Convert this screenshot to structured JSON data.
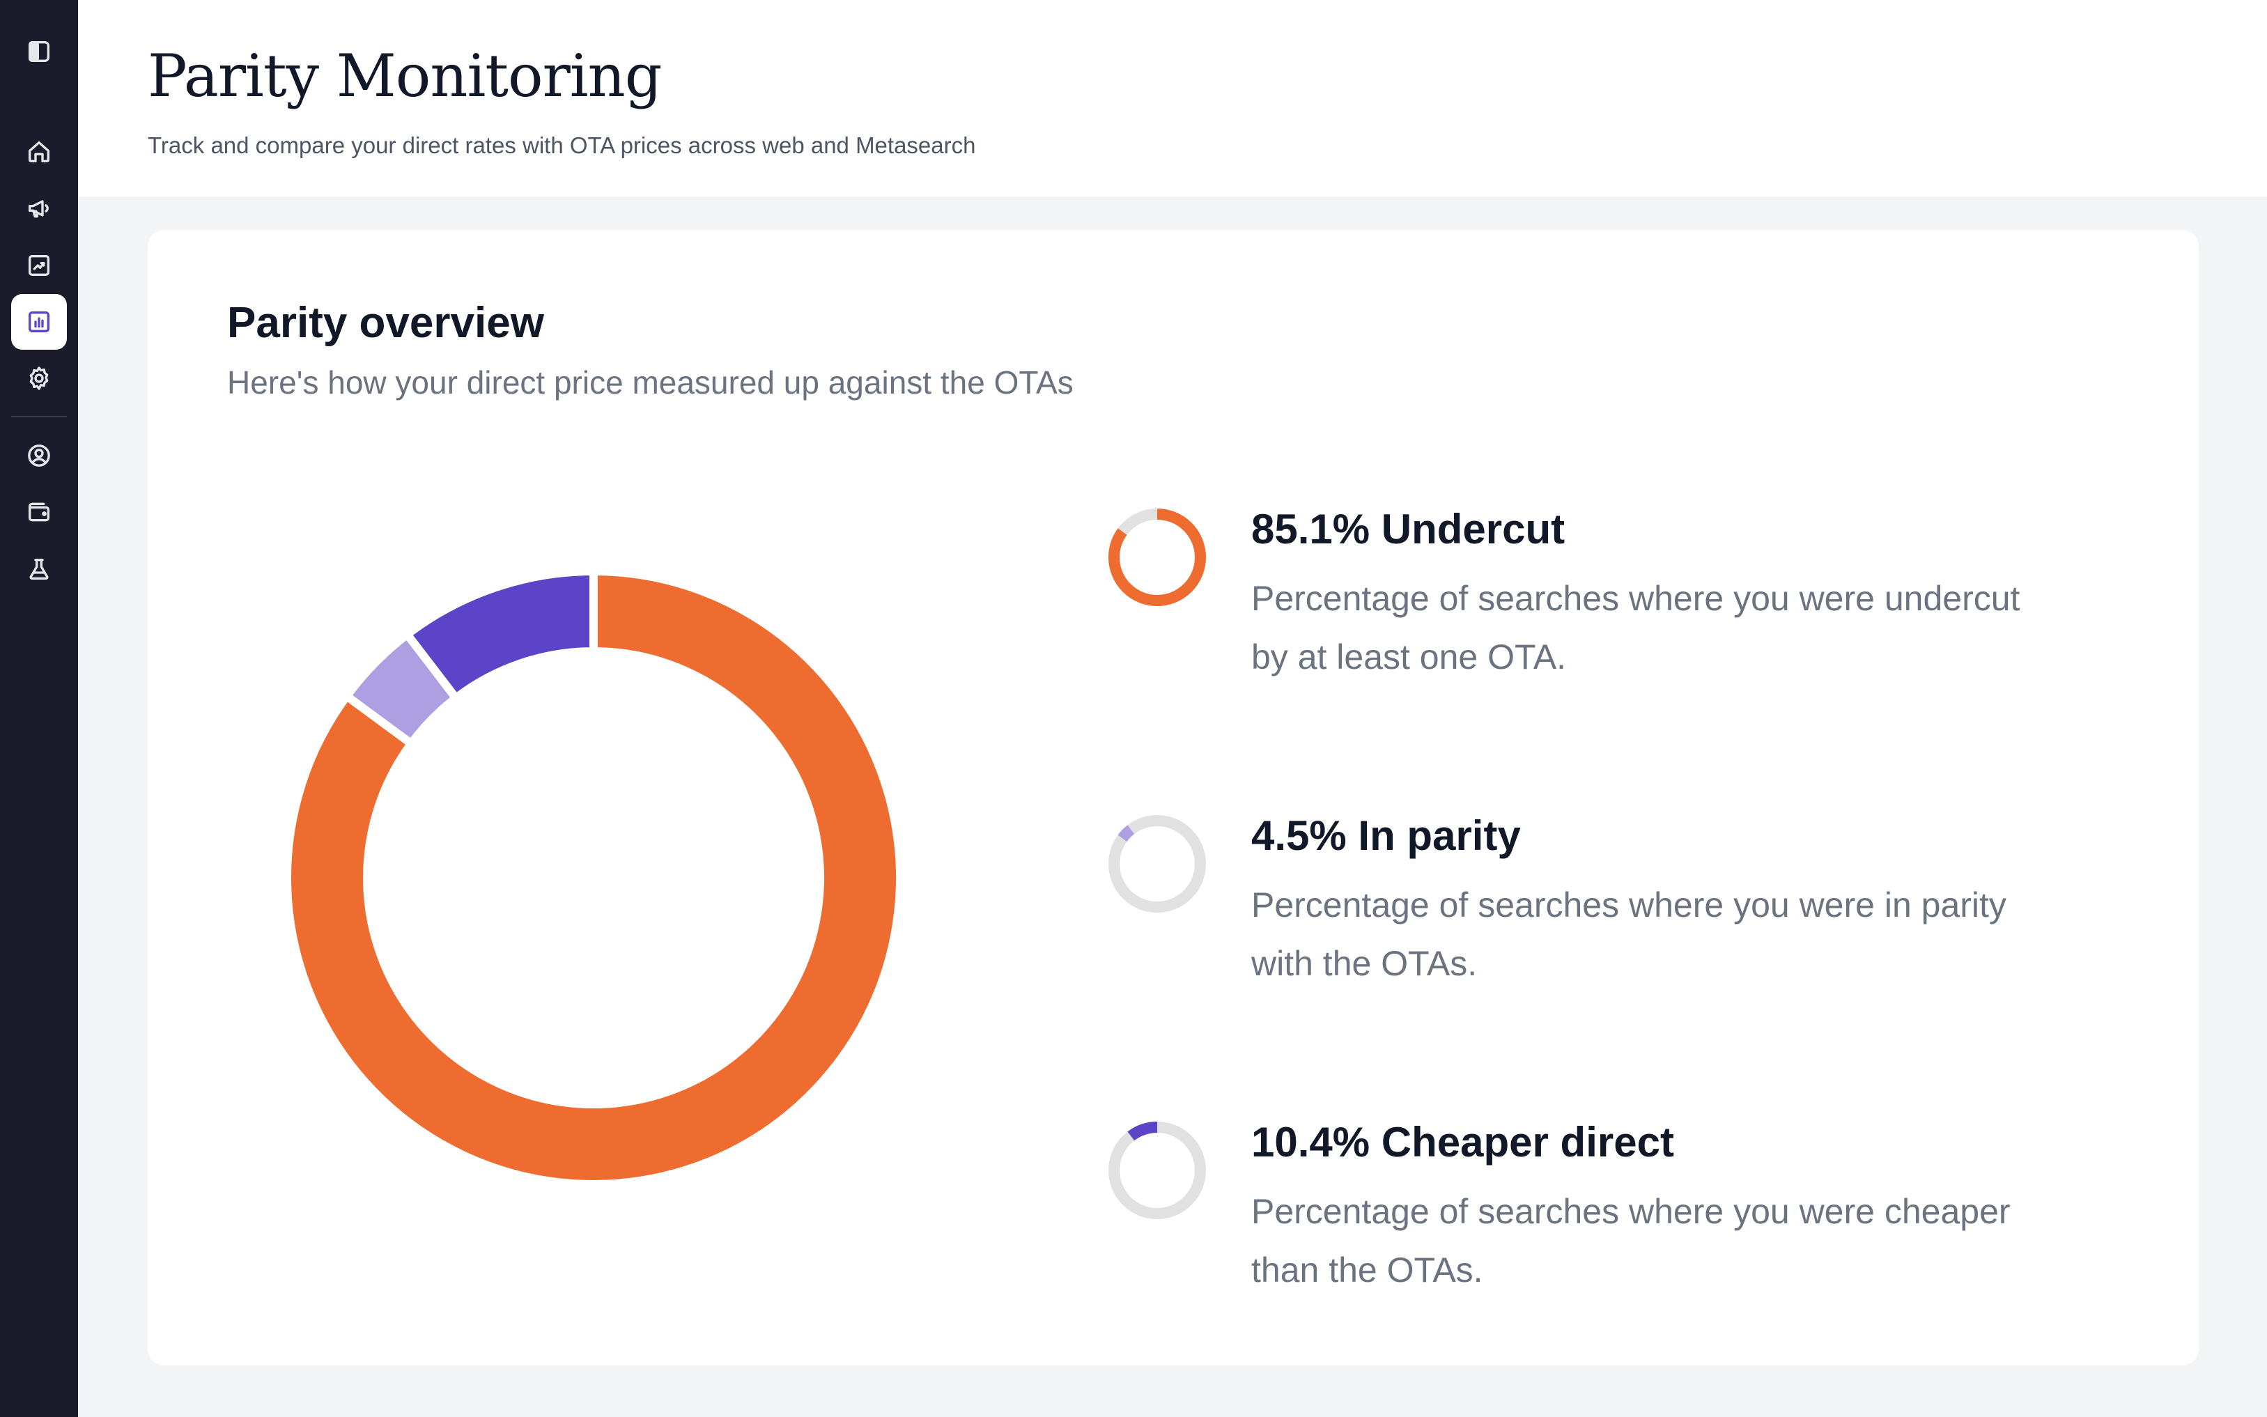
{
  "page": {
    "title": "Parity Monitoring",
    "subtitle": "Track and compare your direct rates with OTA prices across web and Metasearch"
  },
  "sidebar": {
    "items": [
      {
        "icon": "sidebar-toggle-icon",
        "active": false
      },
      {
        "icon": "home-icon",
        "active": false
      },
      {
        "icon": "megaphone-icon",
        "active": false
      },
      {
        "icon": "trend-chart-icon",
        "active": false
      },
      {
        "icon": "bar-chart-icon",
        "active": true
      },
      {
        "icon": "gear-icon",
        "active": false
      },
      {
        "icon": "user-circle-icon",
        "active": false
      },
      {
        "icon": "wallet-icon",
        "active": false
      },
      {
        "icon": "flask-icon",
        "active": false
      }
    ]
  },
  "card": {
    "title": "Parity overview",
    "subtitle": "Here's how your direct price measured up against the OTAs"
  },
  "colors": {
    "undercut": "#ee6c2f",
    "in_parity": "#ae9fe2",
    "cheaper_direct": "#5b44c7",
    "track": "#e1e1e1",
    "sidebar_bg": "#1c1b2b"
  },
  "chart_data": {
    "type": "pie",
    "series": [
      {
        "name": "Undercut",
        "value": 85.1,
        "color": "#ee6c2f"
      },
      {
        "name": "In parity",
        "value": 4.5,
        "color": "#ae9fe2"
      },
      {
        "name": "Cheaper direct",
        "value": 10.4,
        "color": "#5b44c7"
      }
    ]
  },
  "legend": [
    {
      "heading": "85.1% Undercut",
      "description": "Percentage of searches where you were undercut by at least one OTA.",
      "value": 85.1,
      "color": "#ee6c2f"
    },
    {
      "heading": "4.5% In parity",
      "description": "Percentage of searches where you were in parity with the OTAs.",
      "value": 4.5,
      "color": "#ae9fe2"
    },
    {
      "heading": "10.4% Cheaper direct",
      "description": "Percentage of searches where you were cheaper than the OTAs.",
      "value": 10.4,
      "color": "#5b44c7"
    }
  ]
}
